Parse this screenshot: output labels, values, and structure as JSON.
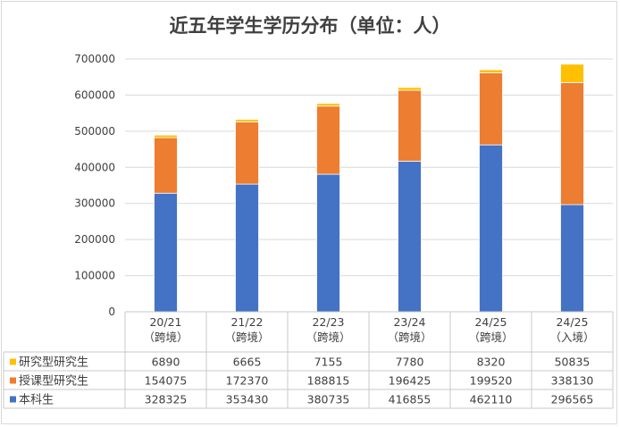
{
  "chart_data": {
    "type": "bar",
    "stacked": true,
    "title": "近五年学生学历分布（单位：人）",
    "categories": [
      [
        "20/21",
        "（跨境）"
      ],
      [
        "21/22",
        "（跨境）"
      ],
      [
        "22/23",
        "（跨境）"
      ],
      [
        "23/24",
        "（跨境）"
      ],
      [
        "24/25",
        "（跨境）"
      ],
      [
        "24/25",
        "（入境）"
      ]
    ],
    "series": [
      {
        "name": "本科生",
        "color": "#4472c4",
        "values": [
          328325,
          353430,
          380735,
          416855,
          462110,
          296565
        ]
      },
      {
        "name": "授课型研究生",
        "color": "#ed7d31",
        "values": [
          154075,
          172370,
          188815,
          196425,
          199520,
          338130
        ]
      },
      {
        "name": "研究型研究生",
        "color": "#ffc000",
        "values": [
          6890,
          6665,
          7155,
          7780,
          8320,
          50835
        ]
      }
    ],
    "ylim": [
      0,
      700000
    ],
    "yticks": [
      0,
      100000,
      200000,
      300000,
      400000,
      500000,
      600000,
      700000
    ],
    "grid": true,
    "legend": "data-table",
    "table_row_order": [
      "研究型研究生",
      "授课型研究生",
      "本科生"
    ]
  }
}
